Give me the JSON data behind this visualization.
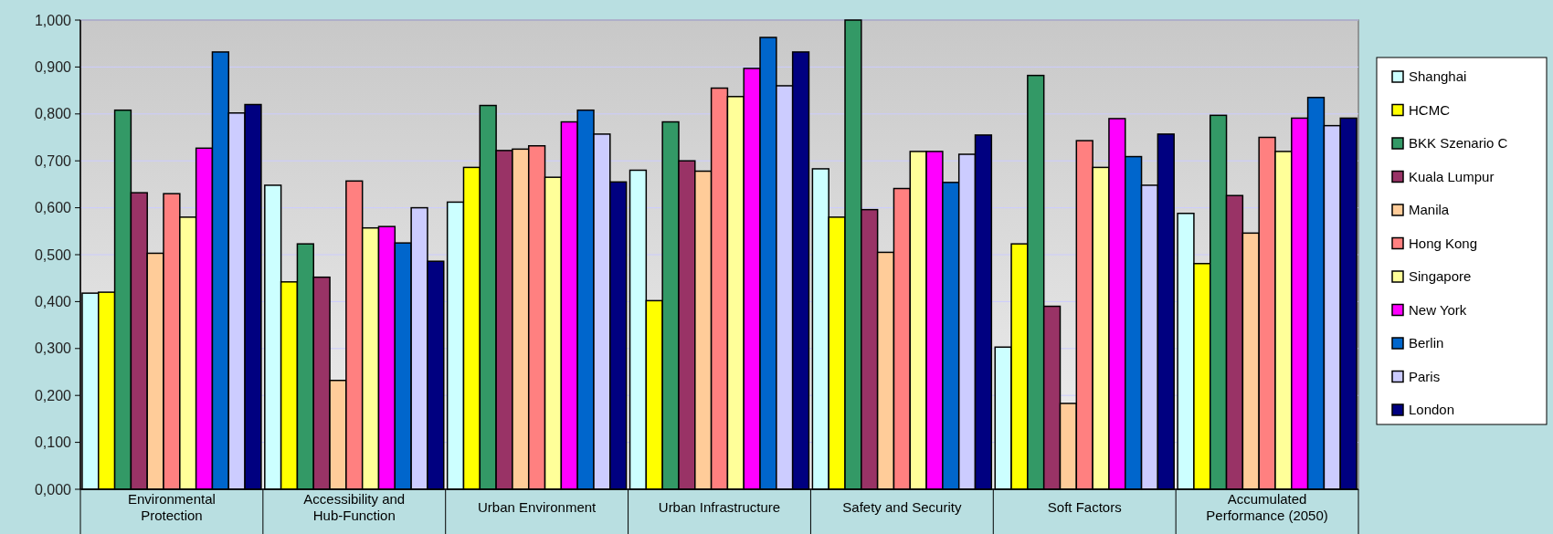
{
  "chart_data": {
    "type": "bar",
    "categories": [
      "Environmental Protection",
      "Accessibility and Hub-Function",
      "Urban Environment",
      "Urban Infrastructure",
      "Safety and Security",
      "Soft Factors",
      "Accumulated Performance (2050)"
    ],
    "series": [
      {
        "name": "Shanghai",
        "color": "#ccffff",
        "values": [
          0.418,
          0.648,
          0.612,
          0.68,
          0.683,
          0.303,
          0.588
        ]
      },
      {
        "name": "HCMC",
        "color": "#ffff00",
        "values": [
          0.42,
          0.442,
          0.686,
          0.402,
          0.58,
          0.523,
          0.481
        ]
      },
      {
        "name": "BKK Szenario C",
        "color": "#339966",
        "values": [
          0.808,
          0.523,
          0.818,
          0.783,
          1.0,
          0.882,
          0.797
        ]
      },
      {
        "name": "Kuala Lumpur",
        "color": "#993366",
        "values": [
          0.632,
          0.452,
          0.722,
          0.7,
          0.596,
          0.39,
          0.626
        ]
      },
      {
        "name": "Manila",
        "color": "#ffcc99",
        "values": [
          0.503,
          0.232,
          0.725,
          0.678,
          0.505,
          0.183,
          0.546
        ]
      },
      {
        "name": "Hong Kong",
        "color": "#ff8080",
        "values": [
          0.63,
          0.657,
          0.732,
          0.855,
          0.641,
          0.743,
          0.75
        ]
      },
      {
        "name": "Singapore",
        "color": "#ffff99",
        "values": [
          0.58,
          0.557,
          0.665,
          0.837,
          0.72,
          0.686,
          0.72
        ]
      },
      {
        "name": "New York",
        "color": "#ff00ff",
        "values": [
          0.727,
          0.56,
          0.783,
          0.897,
          0.72,
          0.79,
          0.791
        ]
      },
      {
        "name": "Berlin",
        "color": "#0066cc",
        "values": [
          0.932,
          0.525,
          0.808,
          0.963,
          0.654,
          0.709,
          0.835
        ]
      },
      {
        "name": "Paris",
        "color": "#ccccff",
        "values": [
          0.802,
          0.6,
          0.757,
          0.86,
          0.714,
          0.648,
          0.775
        ]
      },
      {
        "name": "London",
        "color": "#000080",
        "values": [
          0.82,
          0.486,
          0.655,
          0.932,
          0.755,
          0.757,
          0.791
        ]
      }
    ],
    "ylim": [
      0,
      1
    ],
    "yticks": [
      {
        "value": 0,
        "label": "0,000"
      },
      {
        "value": 0.1,
        "label": "0,100"
      },
      {
        "value": 0.2,
        "label": "0,200"
      },
      {
        "value": 0.3,
        "label": "0,300"
      },
      {
        "value": 0.4,
        "label": "0,400"
      },
      {
        "value": 0.5,
        "label": "0,500"
      },
      {
        "value": 0.6,
        "label": "0,600"
      },
      {
        "value": 0.7,
        "label": "0,700"
      },
      {
        "value": 0.8,
        "label": "0,800"
      },
      {
        "value": 0.9,
        "label": "0,900"
      },
      {
        "value": 1,
        "label": "1,000"
      }
    ],
    "grid": "y",
    "legend": "right"
  }
}
